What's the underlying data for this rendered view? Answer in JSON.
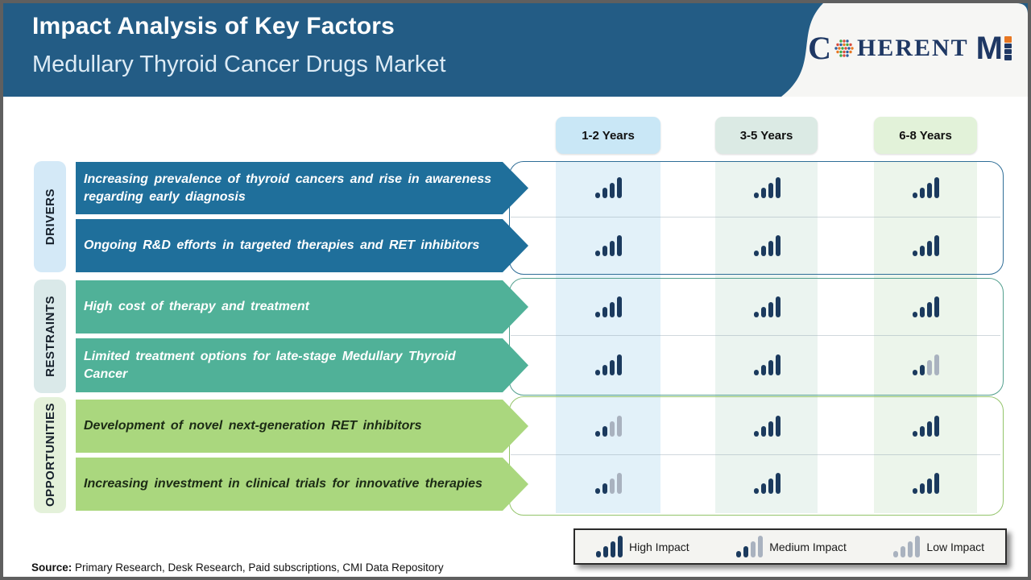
{
  "header": {
    "title": "Impact Analysis of Key Factors",
    "subtitle": "Medullary Thyroid Cancer Drugs Market",
    "bg_color": "#235C85",
    "logo": {
      "part_c": "C",
      "part_herent": "HERENT",
      "part_mi_m": "M",
      "navy": "#1F3864",
      "orange": "#E87722"
    }
  },
  "columns": [
    {
      "label": "1-2 Years",
      "pill_bg": "#C9E7F6",
      "band_bg": "#E2F1F9"
    },
    {
      "label": "3-5 Years",
      "pill_bg": "#DBEAE4",
      "band_bg": "#EBF4F0"
    },
    {
      "label": "6-8 Years",
      "pill_bg": "#E2F2D9",
      "band_bg": "#ECF5EB"
    }
  ],
  "sections": [
    {
      "label": "DRIVERS",
      "label_bg": "#D4E9F7",
      "arrow_color": "#1F6F9B",
      "text_color": "#FFFFFF",
      "border_color": "#2F6E97",
      "rows": [
        {
          "text": "Increasing prevalence of thyroid cancers and rise in awareness regarding early diagnosis",
          "impacts": [
            "high",
            "high",
            "high"
          ]
        },
        {
          "text": "Ongoing R&D efforts in targeted therapies and RET inhibitors",
          "impacts": [
            "high",
            "high",
            "high"
          ]
        }
      ]
    },
    {
      "label": "RESTRAINTS",
      "label_bg": "#DAE9E9",
      "arrow_color": "#50B198",
      "text_color": "#FFFFFF",
      "border_color": "#53A08E",
      "rows": [
        {
          "text": "High cost of therapy and treatment",
          "impacts": [
            "high",
            "high",
            "high"
          ]
        },
        {
          "text": "Limited treatment options for late-stage Medullary Thyroid Cancer",
          "impacts": [
            "high",
            "high",
            "medium"
          ]
        }
      ]
    },
    {
      "label": "OPPORTUNITIES",
      "label_bg": "#E4F1DA",
      "arrow_color": "#AAD77E",
      "text_color": "#1C2B15",
      "border_color": "#93C46A",
      "rows": [
        {
          "text": "Development of novel next-generation RET inhibitors",
          "impacts": [
            "medium",
            "high",
            "high"
          ]
        },
        {
          "text": "Increasing investment in clinical trials for innovative therapies",
          "impacts": [
            "medium",
            "high",
            "high"
          ]
        }
      ]
    }
  ],
  "impact_levels": {
    "high": [
      1,
      1,
      1,
      1
    ],
    "medium": [
      1,
      1,
      0,
      0
    ],
    "low": [
      0,
      0,
      0,
      0
    ]
  },
  "impact_colors": {
    "dark": "#1B3A5E",
    "light": "#A9B2BF"
  },
  "legend": [
    {
      "label": "High Impact",
      "type": "high"
    },
    {
      "label": "Medium Impact",
      "type": "medium"
    },
    {
      "label": "Low Impact",
      "type": "low"
    }
  ],
  "source": {
    "prefix": "Source:",
    "text": " Primary Research, Desk Research, Paid subscriptions, CMI Data Repository"
  }
}
